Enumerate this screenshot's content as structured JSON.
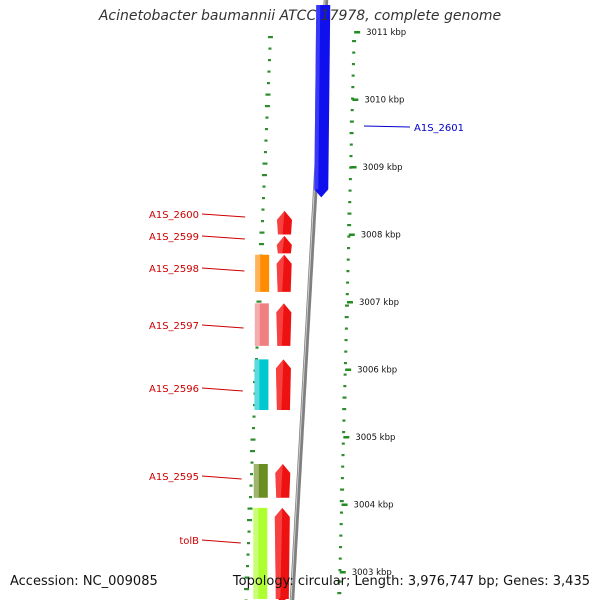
{
  "title": "Acinetobacter baumannii ATCC 17978, complete genome",
  "footer": {
    "accession": "Accession: NC_009085",
    "topology": "Topology: circular; Length: 3,976,747 bp; Genes: 3,435"
  },
  "scale_ticks": [
    {
      "label": "3011 kbp",
      "kbp": 3011
    },
    {
      "label": "3010 kbp",
      "kbp": 3010
    },
    {
      "label": "3009 kbp",
      "kbp": 3009
    },
    {
      "label": "3008 kbp",
      "kbp": 3008
    },
    {
      "label": "3007 kbp",
      "kbp": 3007
    },
    {
      "label": "3006 kbp",
      "kbp": 3006
    },
    {
      "label": "3005 kbp",
      "kbp": 3005
    },
    {
      "label": "3004 kbp",
      "kbp": 3004
    },
    {
      "label": "3003 kbp",
      "kbp": 3003
    }
  ],
  "genes": [
    {
      "name": "A1S_2601",
      "strand": "reverse",
      "color": "#1010ee",
      "start_kbp": 3008.55,
      "end_kbp": 3011.4,
      "labeled": true,
      "label_color": "#0000cc"
    },
    {
      "name": "A1S_2600",
      "strand": "forward",
      "color": "#ee1111",
      "start_kbp": 3008.0,
      "end_kbp": 3008.35,
      "labeled": true,
      "label_color": "#cc0000",
      "cog_color": null
    },
    {
      "name": "A1S_2599",
      "strand": "forward",
      "color": "#ee1111",
      "start_kbp": 3007.72,
      "end_kbp": 3007.98,
      "labeled": true,
      "label_color": "#cc0000",
      "cog_color": null
    },
    {
      "name": "A1S_2598",
      "strand": "forward",
      "color": "#ee1111",
      "start_kbp": 3007.15,
      "end_kbp": 3007.7,
      "labeled": true,
      "label_color": "#cc0000",
      "cog_color": "#ff8c00"
    },
    {
      "name": "A1S_2597",
      "strand": "forward",
      "color": "#ee1111",
      "start_kbp": 3006.35,
      "end_kbp": 3006.98,
      "labeled": true,
      "label_color": "#cc0000",
      "cog_color": "#f08080"
    },
    {
      "name": "A1S_2596",
      "strand": "forward",
      "color": "#ee1111",
      "start_kbp": 3005.4,
      "end_kbp": 3006.15,
      "labeled": true,
      "label_color": "#cc0000",
      "cog_color": "#00c8d0"
    },
    {
      "name": "A1S_2595",
      "strand": "forward",
      "color": "#ee1111",
      "start_kbp": 3004.1,
      "end_kbp": 3004.6,
      "labeled": true,
      "label_color": "#cc0000",
      "cog_color": "#6b8e23"
    },
    {
      "name": "tolB",
      "strand": "forward",
      "color": "#ee1111",
      "start_kbp": 3002.6,
      "end_kbp": 3003.95,
      "labeled": true,
      "label_color": "#cc0000",
      "cog_color": "#adff2f"
    }
  ],
  "colors": {
    "backbone": "#808080",
    "gc_dots": "#2e8b2e",
    "tick": "#228b22",
    "tick_text": "#111111"
  }
}
